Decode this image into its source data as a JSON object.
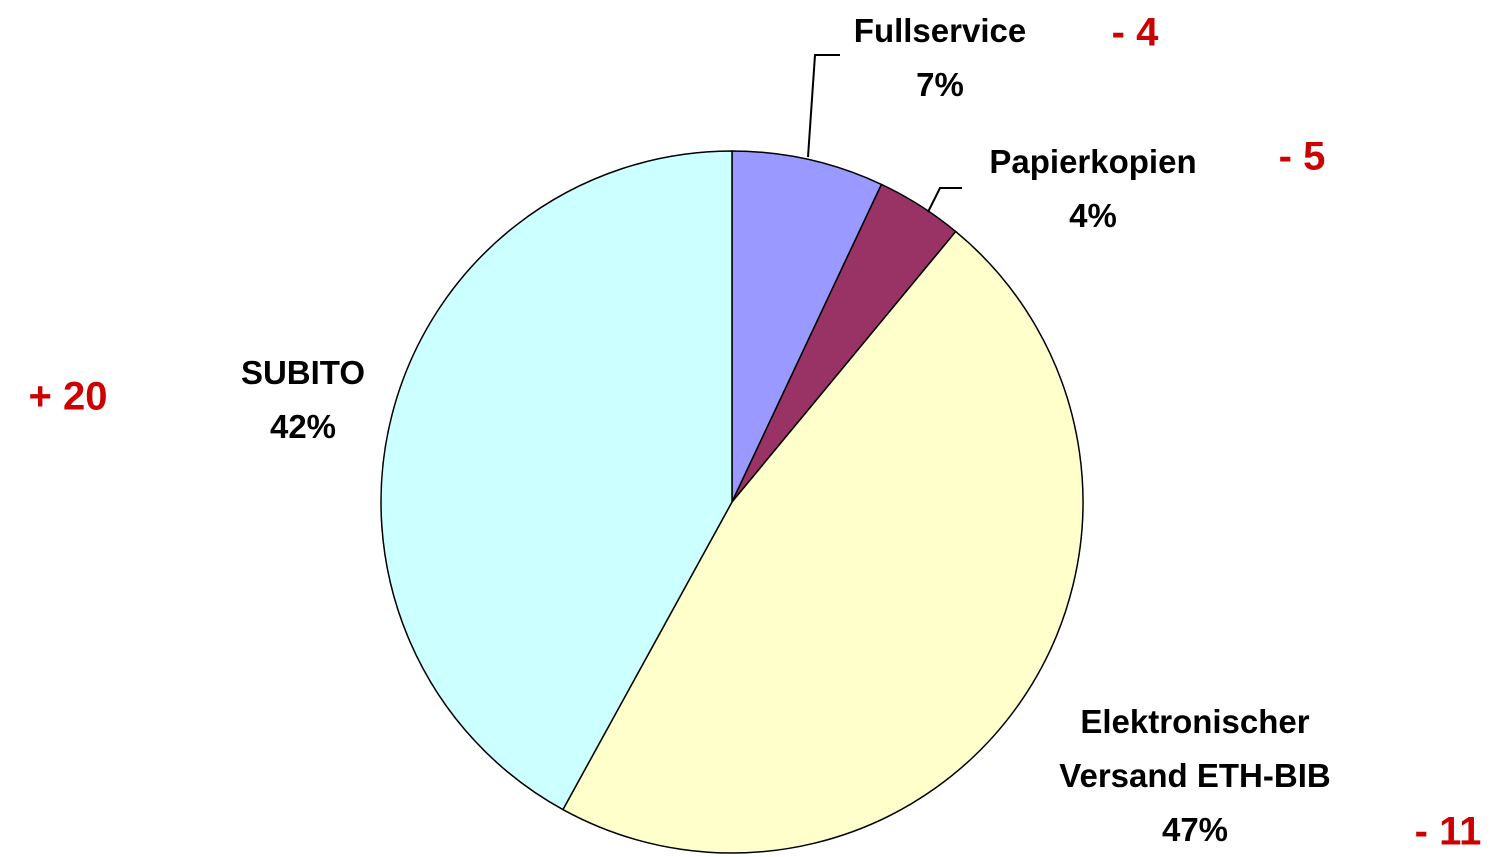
{
  "chart_data": {
    "type": "pie",
    "categories": [
      "Fullservice",
      "Papierkopien",
      "Elektronischer Versand ETH-BIB",
      "SUBITO"
    ],
    "values": [
      7,
      4,
      47,
      42
    ],
    "value_labels": [
      "7%",
      "4%",
      "47%",
      "42%"
    ],
    "colors": [
      "#9999ff",
      "#993366",
      "#ffffcc",
      "#ccffff"
    ],
    "annotations": [
      "- 4",
      "- 5",
      "- 11",
      "+ 20"
    ]
  }
}
